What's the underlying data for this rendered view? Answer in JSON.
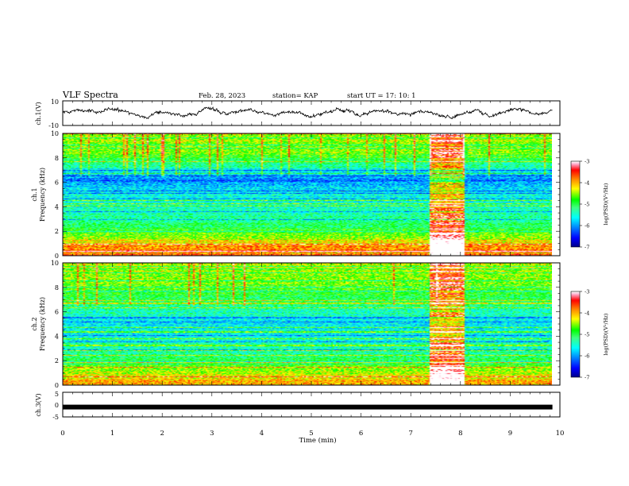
{
  "header": {
    "title": "VLF Spectra",
    "date": "Feb. 28, 2023",
    "station": "station= KAP",
    "start": "start  UT  =   17: 10: 1"
  },
  "colors": {
    "colormap": [
      "#00008f",
      "#0000ff",
      "#0080ff",
      "#00ffff",
      "#40ff80",
      "#00ff00",
      "#ffff00",
      "#ff8000",
      "#ff0000",
      "#ffaacc",
      "#ffffff"
    ]
  },
  "chart_data": [
    {
      "type": "line",
      "ylabel": "ch.1(V)",
      "ylim": [
        -10,
        10
      ],
      "yticks": [
        "10",
        "-10"
      ],
      "xlim": [
        0,
        10
      ],
      "series": [
        {
          "values_description": "time-series voltage fluctuating approx. between -5 and 5 V from 0 to 9.85 min"
        }
      ]
    },
    {
      "type": "heatmap",
      "ylabel_line1": "ch.1",
      "ylabel_line2": "Frequency (kHz)",
      "ylim": [
        0,
        10
      ],
      "yticks": [
        "0",
        "2",
        "4",
        "6",
        "8",
        "10"
      ],
      "xlim": [
        0,
        10
      ],
      "data_xrange": [
        0,
        9.85
      ],
      "colorbar": {
        "label": "log(PSD)(V²/Hz)",
        "range": [
          -7,
          -3
        ],
        "ticks": [
          "-3",
          "-4",
          "-5",
          "-6",
          "-7"
        ]
      },
      "enhanced_interval_min": [
        7.4,
        8.1
      ],
      "background_level_by_freq_khz": [
        {
          "f": 0.3,
          "level": -3.6
        },
        {
          "f": 2.0,
          "level": -4.8
        },
        {
          "f": 3.0,
          "level": -5.3
        },
        {
          "f": 5.0,
          "level": -5.5
        },
        {
          "f": 6.2,
          "level": -6.1
        },
        {
          "f": 8.5,
          "level": -4.6
        },
        {
          "f": 10.0,
          "level": -4.5
        }
      ]
    },
    {
      "type": "heatmap",
      "ylabel_line1": "ch.2",
      "ylabel_line2": "Frequency (kHz)",
      "ylim": [
        0,
        10
      ],
      "yticks": [
        "0",
        "2",
        "4",
        "6",
        "8",
        "10"
      ],
      "xlim": [
        0,
        10
      ],
      "data_xrange": [
        0,
        9.85
      ],
      "colorbar": {
        "label": "log(PSD)(V²/Hz)",
        "range": [
          -7,
          -3
        ],
        "ticks": [
          "-3",
          "-4",
          "-5",
          "-6",
          "-7"
        ]
      },
      "enhanced_interval_min": [
        7.4,
        8.1
      ],
      "background_level_by_freq_khz": [
        {
          "f": 0.3,
          "level": -4.0
        },
        {
          "f": 2.0,
          "level": -5.0
        },
        {
          "f": 3.0,
          "level": -5.4
        },
        {
          "f": 5.0,
          "level": -5.6
        },
        {
          "f": 6.2,
          "level": -5.3
        },
        {
          "f": 8.5,
          "level": -4.6
        },
        {
          "f": 10.0,
          "level": -4.4
        }
      ]
    },
    {
      "type": "line",
      "ylabel": "ch.3(V)",
      "ylim": [
        -5,
        5
      ],
      "yticks": [
        "5",
        "0",
        "-5"
      ],
      "xlim": [
        0,
        10
      ],
      "series": [
        {
          "values_description": "constant value of approximately -1 V from 0 to 9.85 min"
        }
      ],
      "constant_value": -1
    }
  ],
  "xaxis": {
    "label": "Time  (min)",
    "ticks": [
      "0",
      "1",
      "2",
      "3",
      "4",
      "5",
      "6",
      "7",
      "8",
      "9",
      "10"
    ]
  }
}
